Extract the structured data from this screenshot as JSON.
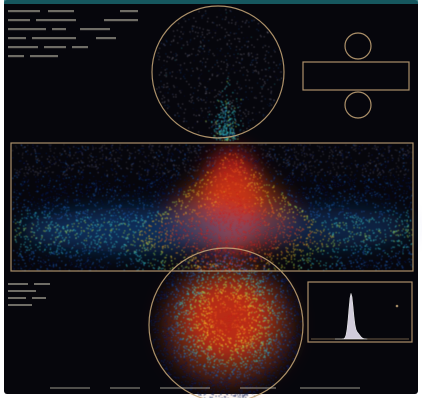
{
  "display": {
    "background": "#06060c",
    "outline_color": "#c9a97a",
    "density_palette": [
      "#0a1a5a",
      "#1d5fb8",
      "#33c0c8",
      "#9ed84a",
      "#f2c027",
      "#e8541c",
      "#c81e18"
    ]
  },
  "panels": [
    {
      "name": "top-circle-view",
      "shape": "circle"
    },
    {
      "name": "detector-side-view",
      "shape": "ring-and-box"
    },
    {
      "name": "longitudinal-view",
      "shape": "rectangle"
    },
    {
      "name": "end-view",
      "shape": "circle"
    },
    {
      "name": "histogram",
      "shape": "rectangle"
    }
  ],
  "histogram": {
    "peak_fraction": 0.9
  }
}
